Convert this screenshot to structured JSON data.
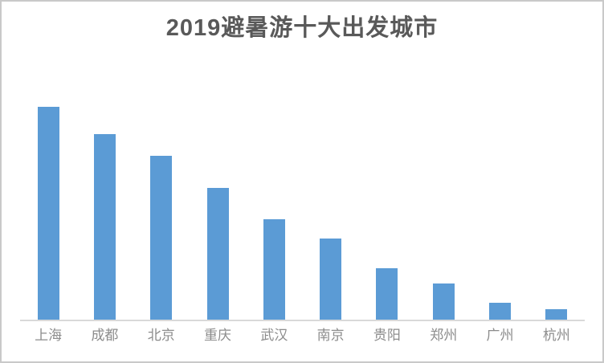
{
  "page": {
    "background": "#ffffff",
    "frame_border_color": "#c9c9c9"
  },
  "chart_data": {
    "type": "bar",
    "title": "2019避暑游十大出发城市",
    "categories": [
      "上海",
      "成都",
      "北京",
      "重庆",
      "武汉",
      "南京",
      "贵阳",
      "郑州",
      "广州",
      "杭州"
    ],
    "values": [
      100,
      87,
      77,
      62,
      47,
      38,
      24,
      17,
      8,
      5
    ],
    "xlabel": "",
    "ylabel": "",
    "ylim": [
      0,
      100
    ],
    "gridlines": false,
    "legend_position": "none",
    "y_axis_labels_visible": false,
    "colors": {
      "bar": "#5B9BD5",
      "title_text": "#595959",
      "axis_label_text": "#8C8C8C",
      "axis_line": "#D9D9D9"
    }
  }
}
